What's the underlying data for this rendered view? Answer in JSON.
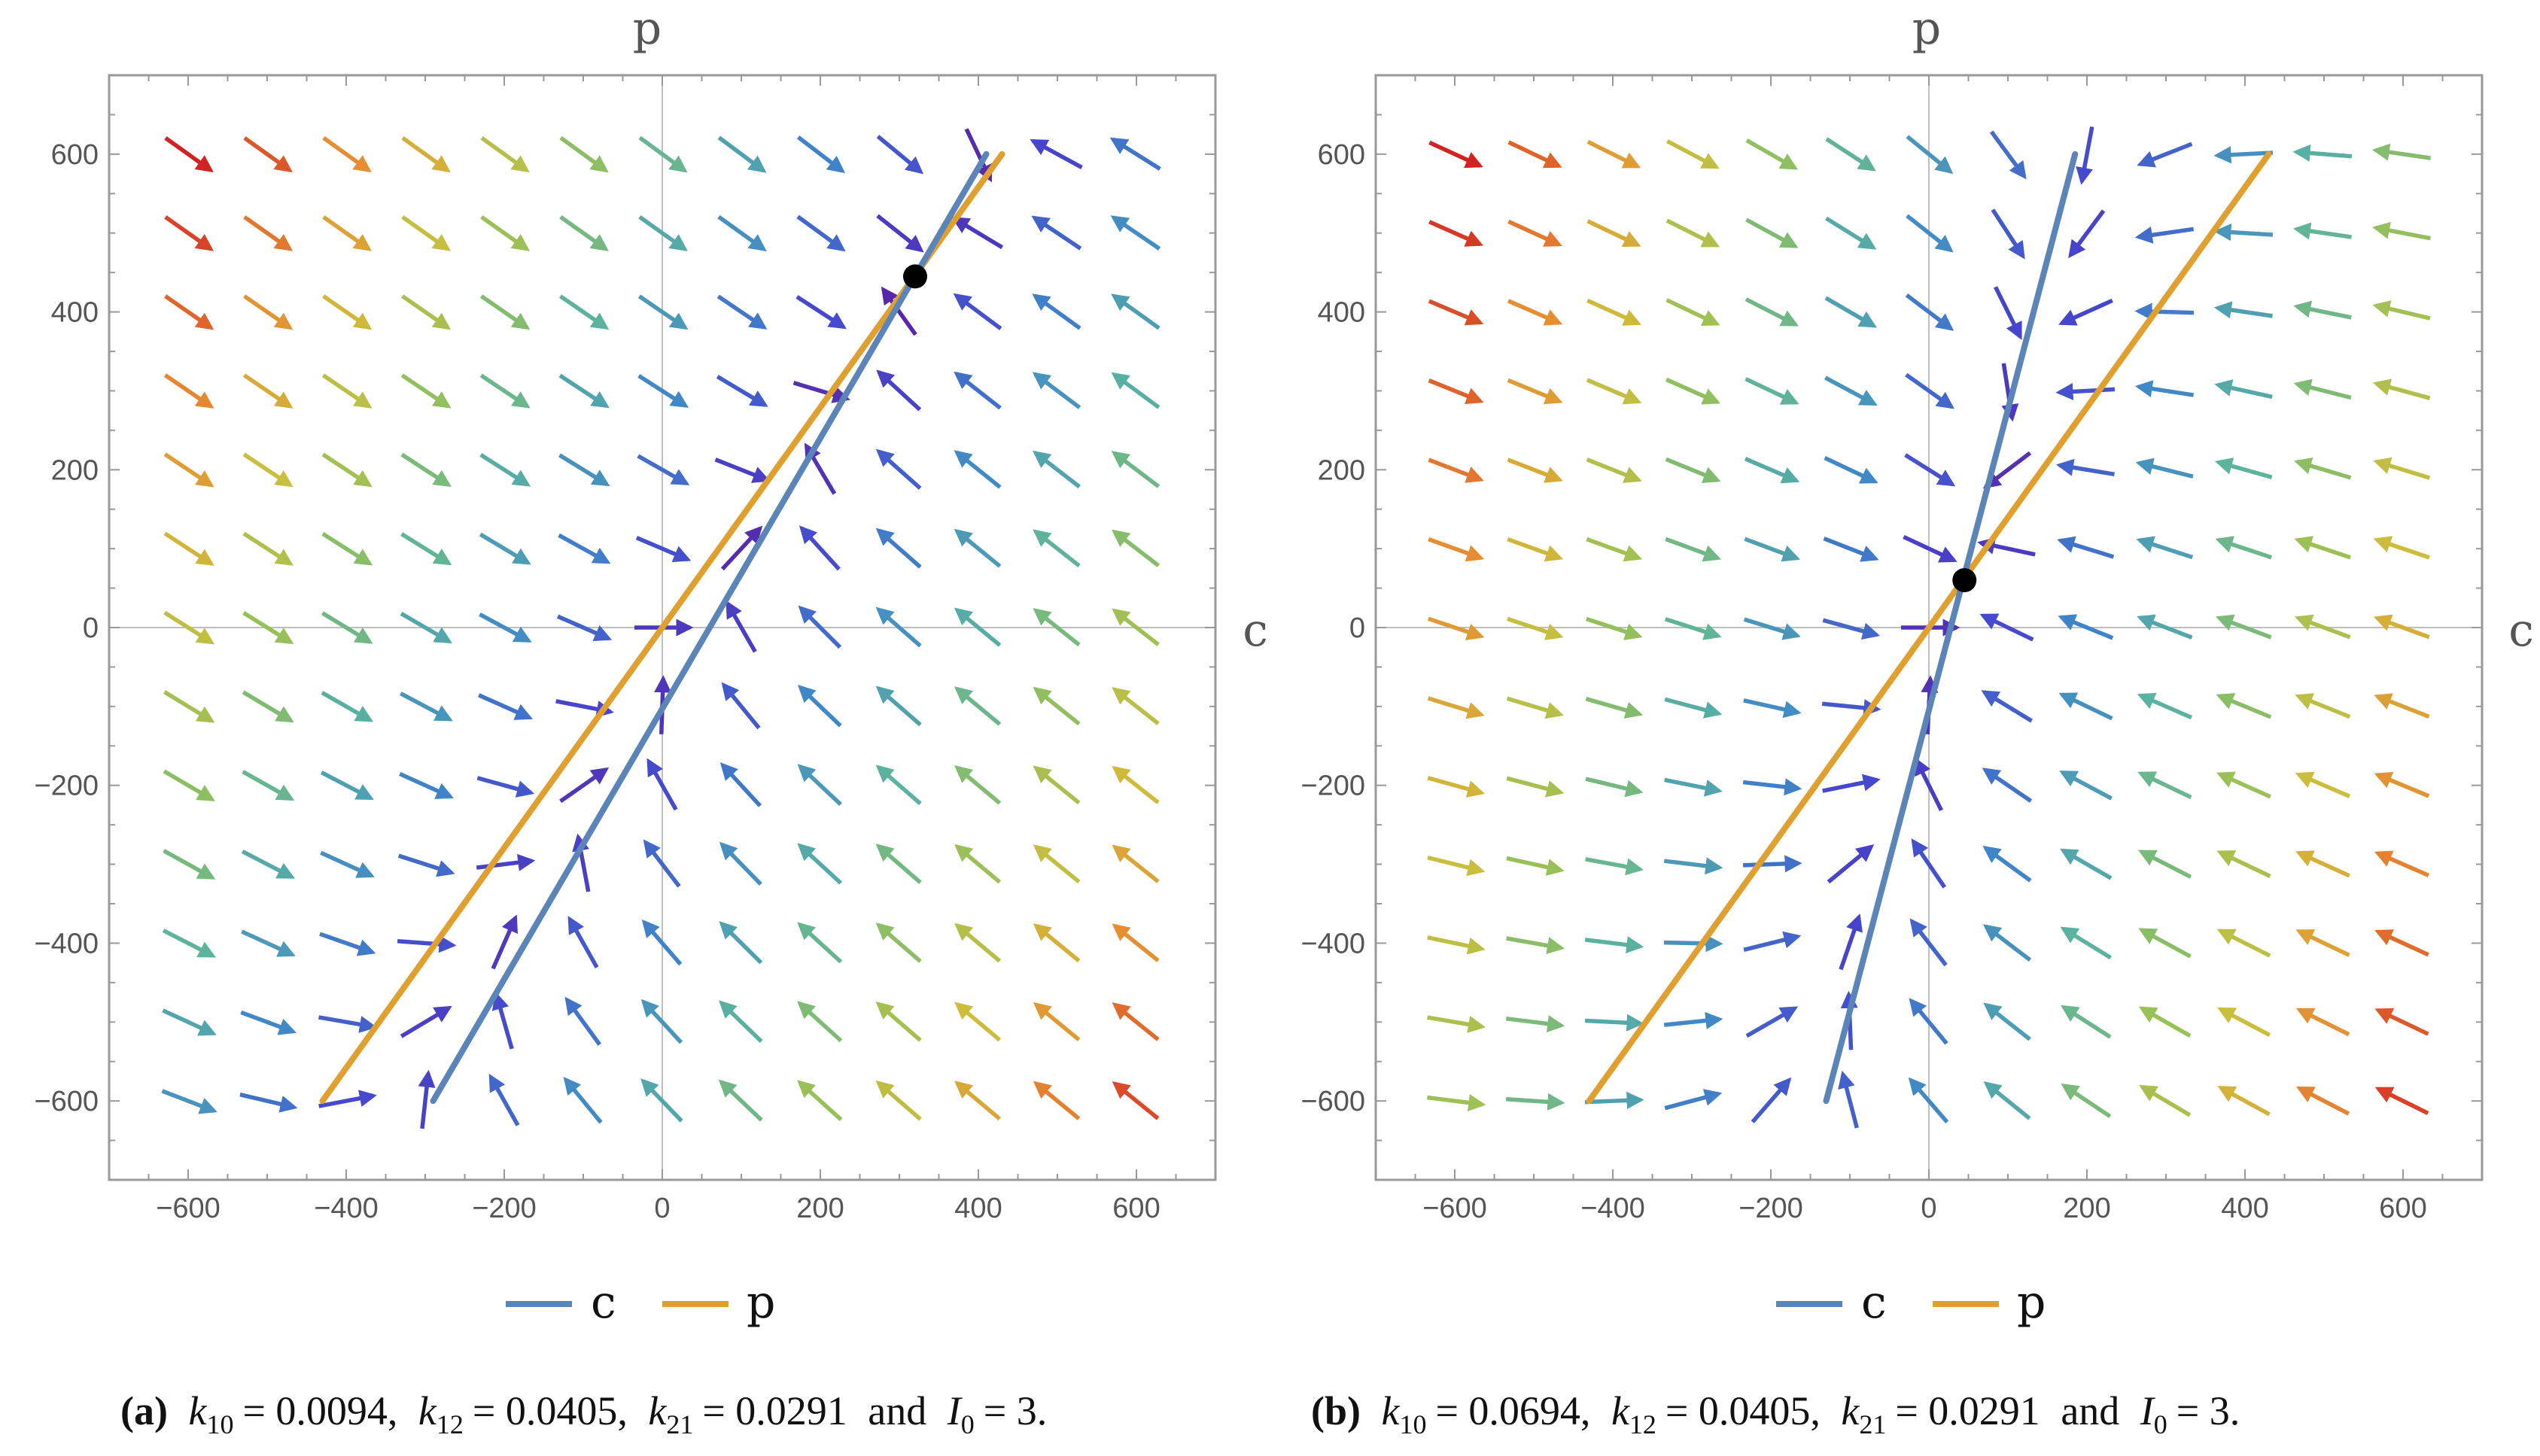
{
  "figure": {
    "colors": {
      "c_line": "#5B84B9",
      "p_line": "#E0A030",
      "equilibrium": "#000000",
      "frame": "#999999",
      "axis": "#bfbfbf",
      "tick_text": "#555555"
    }
  },
  "chart_data": [
    {
      "type": "vector_field",
      "panel": "a",
      "xlabel": "c",
      "ylabel": "p",
      "xlim": [
        -700,
        700
      ],
      "ylim": [
        -700,
        700
      ],
      "xticks": [
        -600,
        -400,
        -200,
        0,
        200,
        400,
        600
      ],
      "yticks": [
        600,
        400,
        200,
        0,
        -200,
        -400,
        -600
      ],
      "xtick_labels": [
        "−600",
        "−400",
        "−200",
        "0",
        "200",
        "400",
        "600"
      ],
      "ytick_labels": [
        "600",
        "400",
        "200",
        "0",
        "−200",
        "−400",
        "−600"
      ],
      "params": {
        "k10": 0.0094,
        "k12": 0.0405,
        "k21": 0.0291,
        "I0": 3
      },
      "series": [
        {
          "name": "c",
          "x": [
            -290,
            410
          ],
          "y": [
            -600,
            600
          ]
        },
        {
          "name": "p",
          "x": [
            -430,
            430
          ],
          "y": [
            -600,
            600
          ]
        }
      ],
      "equilibrium": {
        "c": 320,
        "p": 445
      },
      "legend": [
        "c",
        "p"
      ],
      "caption": {
        "label": "(a)",
        "k10": "= 0.0094,",
        "k12": "= 0.0405,",
        "k21": "= 0.0291",
        "and": "and",
        "I0": "= 3."
      }
    },
    {
      "type": "vector_field",
      "panel": "b",
      "xlabel": "c",
      "ylabel": "p",
      "xlim": [
        -700,
        700
      ],
      "ylim": [
        -700,
        700
      ],
      "xticks": [
        -600,
        -400,
        -200,
        0,
        200,
        400,
        600
      ],
      "yticks": [
        600,
        400,
        200,
        0,
        -200,
        -400,
        -600
      ],
      "xtick_labels": [
        "−600",
        "−400",
        "−200",
        "0",
        "200",
        "400",
        "600"
      ],
      "ytick_labels": [
        "600",
        "400",
        "200",
        "0",
        "−200",
        "−400",
        "−600"
      ],
      "params": {
        "k10": 0.0694,
        "k12": 0.0405,
        "k21": 0.0291,
        "I0": 3
      },
      "series": [
        {
          "name": "c",
          "x": [
            -130,
            185
          ],
          "y": [
            -600,
            600
          ]
        },
        {
          "name": "p",
          "x": [
            -430,
            430
          ],
          "y": [
            -600,
            600
          ]
        }
      ],
      "equilibrium": {
        "c": 45,
        "p": 60
      },
      "legend": [
        "c",
        "p"
      ],
      "caption": {
        "label": "(b)",
        "k10": "= 0.0694,",
        "k12": "= 0.0405,",
        "k21": "= 0.0291",
        "and": "and",
        "I0": "= 3."
      }
    }
  ]
}
